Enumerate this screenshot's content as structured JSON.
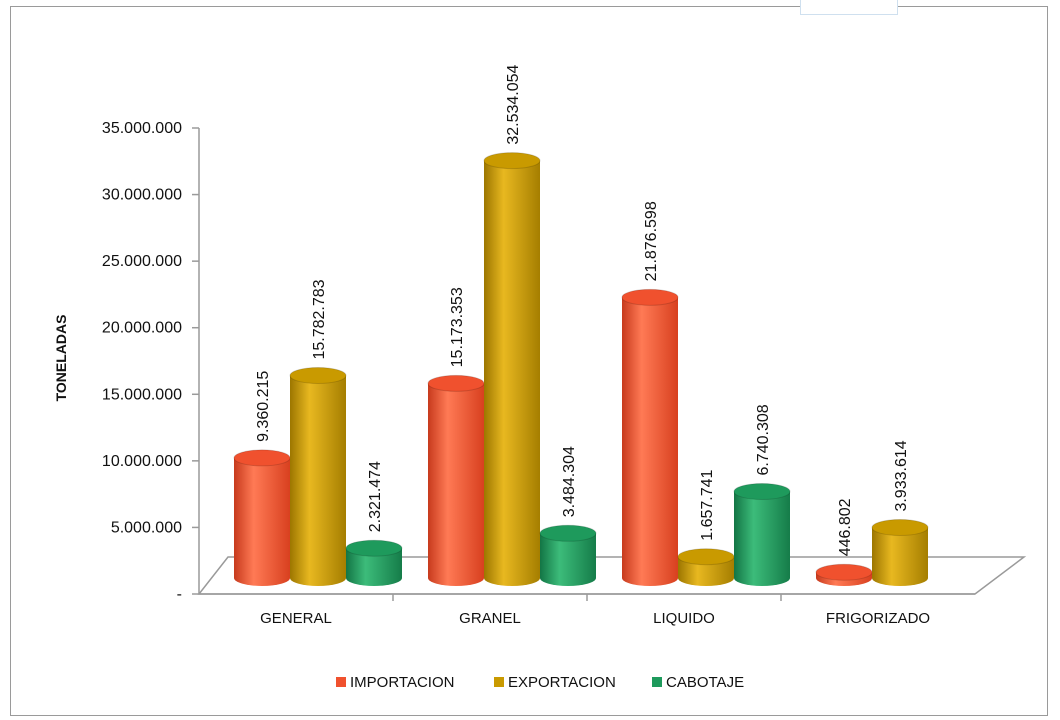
{
  "chart_data": {
    "type": "bar",
    "categories": [
      "GENERAL",
      "GRANEL",
      "LIQUIDO",
      "FRIGORIZADO"
    ],
    "series": [
      {
        "name": "IMPORTACION",
        "color": "#f0512e",
        "values": [
          9360215,
          15173353,
          21876598,
          446802
        ],
        "labels": [
          "9.360.215",
          "15.173.353",
          "21.876.598",
          "446.802"
        ]
      },
      {
        "name": "EXPORTACION",
        "color": "#c99a00",
        "values": [
          15782783,
          32534054,
          1657741,
          3933614
        ],
        "labels": [
          "15.782.783",
          "32.534.054",
          "1.657.741",
          "3.933.614"
        ]
      },
      {
        "name": "CABOTAJE",
        "color": "#1e9a5c",
        "values": [
          2321474,
          3484304,
          6740308,
          null
        ],
        "labels": [
          "2.321.474",
          "3.484.304",
          "6.740.308",
          null
        ]
      }
    ],
    "ylabel": "TONELADAS",
    "ylim": [
      0,
      35000000
    ],
    "yticks": [
      0,
      5000000,
      10000000,
      15000000,
      20000000,
      25000000,
      30000000,
      35000000
    ],
    "ytick_labels": [
      "-",
      "5.000.000",
      "10.000.000",
      "15.000.000",
      "20.000.000",
      "25.000.000",
      "30.000.000",
      "35.000.000"
    ],
    "legend_position": "bottom",
    "grid": false
  }
}
